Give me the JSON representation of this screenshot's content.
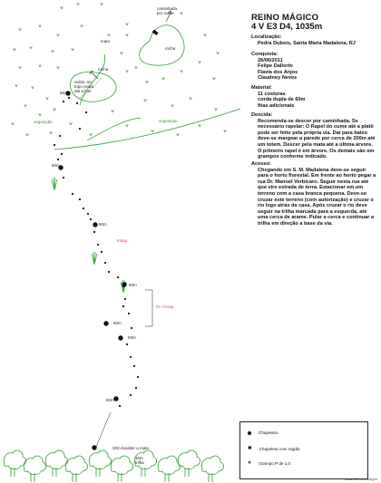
{
  "title": "REINO MÁGICO",
  "grade": "4  V E3 D4, 1035m",
  "localizacao": {
    "label": "Localização:",
    "value": "Pedra Dubois, Santa Maria Madalena, RJ"
  },
  "conquista": {
    "label": "Conquista:",
    "date": "26/06/2011",
    "climbers": [
      "Felipe Dallorto",
      "Flavia dos Anjos",
      "Claudney Neves"
    ]
  },
  "material": {
    "label": "Material:",
    "items": [
      "11 costuras",
      "corda dupla de 60m",
      "fitas adicionais"
    ]
  },
  "descida": {
    "label": "Descida:",
    "text": "Recomenda-se descer por caminhada. Se necessário rapelar: O Rapel do cume até a platô pode ser feito pela própria via. Daí para baixo deve-se margear a parede por cerca de 200m até um totem. Descer pela mata até a última árvore. O primeiro rapel é em árvore. Os demais são em grampos conforme indicado."
  },
  "acesso": {
    "label": "Acesso:",
    "text": "Chegando em S. M. Madalena deve-se seguir para o horto florestal. Em frente ao horto pegar a rua Dr. Manoel Verbicaro. Seguir nesta rua até que vire estrada de terra. Estacionar em um terreno com a casa branca pequena. Deve-se cruzar este terreno (com autorização) e cruzar o rio logo atrás da casa. Após cruzar o rio deve seguir na trilha marcada para a esquerda, até uma cerca de arame. Pular a cerca e continuar a trilha em direção a base da via."
  },
  "topo_labels": {
    "caminhada": "caminhada\npro cume",
    "rocha_top": "rocha",
    "mato": "mato",
    "vegetacao_left": "vegetação",
    "vegetacao_right": "vegetação",
    "saida": "saída, ao\ntopo nesta\naté a lum",
    "rocha_mid": "rocha",
    "m55": "55m",
    "m60a": "60m",
    "m60b": "60m",
    "m60c": "60m",
    "m60d": "60m",
    "m60e": "60m",
    "iiisup_a": "IIIsup",
    "iv_sup": "IV  /  IVsup",
    "m60f": "60m",
    "base": "20m boulder a mato",
    "trilha": "40m\ntrilha"
  },
  "legend": {
    "chapeleta": "Chapeleta",
    "chapeleta_regiao": "Chapeleta  com  região",
    "grampo": "Grampo P  de 1,0"
  },
  "site": "www.carbonos.org.br"
}
